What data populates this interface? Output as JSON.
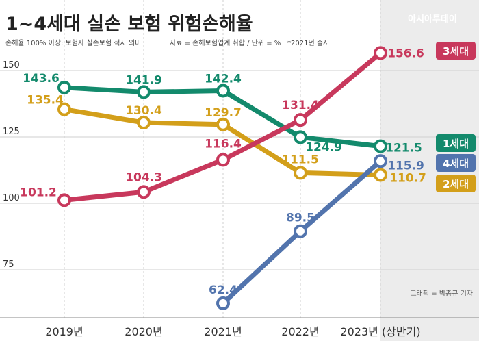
{
  "chart_data": {
    "type": "line",
    "title": "1~4세대 실손 보험 위험손해율",
    "subtitle": "손해율 100% 이상: 보험사 실손보험 적자 의미",
    "source": "자료 = 손해보험업계 취합  / 단위 = %",
    "note": "*2021년 출시",
    "brand": "아시아투데이",
    "credit": "그래픽 = 박종규 기자",
    "categories": [
      "2019년",
      "2020년",
      "2021년",
      "2022년",
      "2023년 (상반기)"
    ],
    "y_ticks": [
      150,
      125,
      100,
      75
    ],
    "ylim": [
      60,
      160
    ],
    "grid": true,
    "series": [
      {
        "name": "1세대",
        "color": "#138a6c",
        "values": [
          143.6,
          141.9,
          142.4,
          124.9,
          121.5
        ]
      },
      {
        "name": "2세대",
        "color": "#d39f1a",
        "values": [
          135.4,
          130.4,
          129.7,
          111.5,
          110.7
        ]
      },
      {
        "name": "3세대",
        "color": "#c8385c",
        "values": [
          101.2,
          104.3,
          116.4,
          131.4,
          156.6
        ]
      },
      {
        "name": "4세대",
        "color": "#5274ad",
        "values": [
          null,
          null,
          62.4,
          89.5,
          115.9
        ]
      }
    ]
  }
}
